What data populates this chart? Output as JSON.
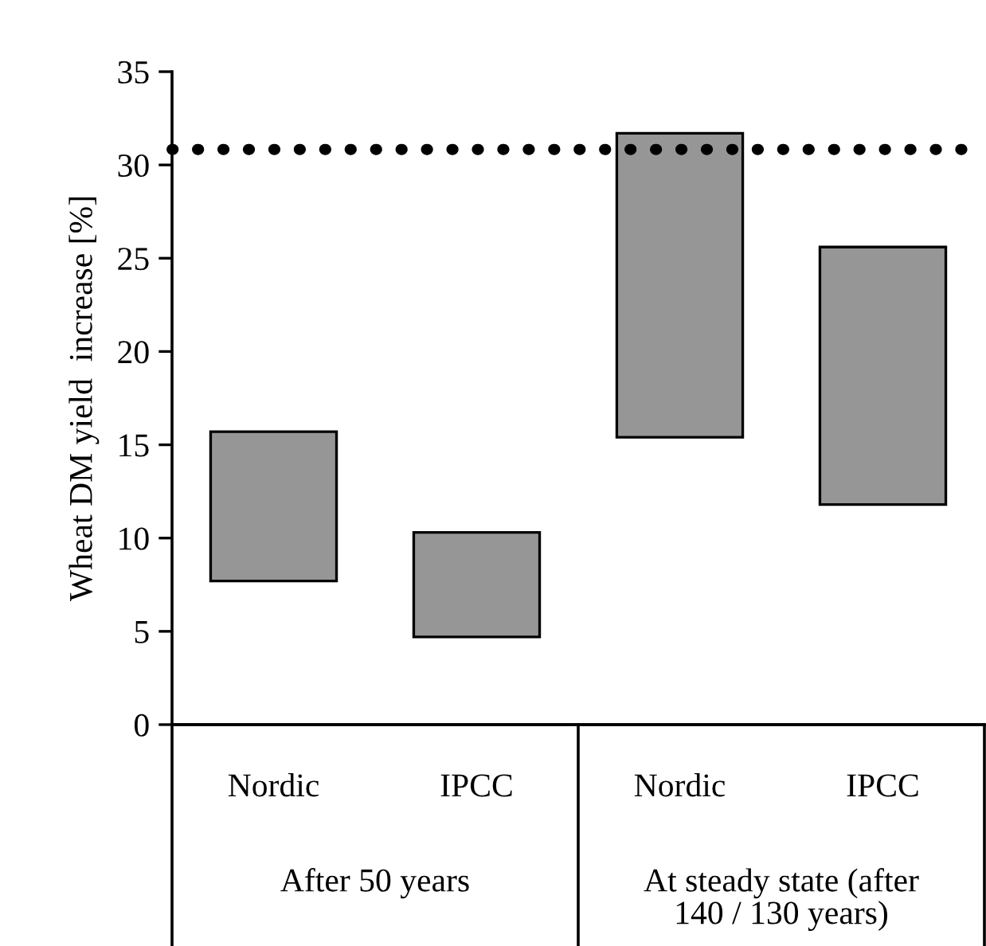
{
  "chart_data": {
    "type": "bar",
    "ylabel": "Wheat DM yield  increase [%]",
    "categories": [
      "Nordic",
      "IPCC",
      "Nordic",
      "IPCC"
    ],
    "base": [
      7.7,
      4.7,
      15.4,
      11.8
    ],
    "values": [
      8.0,
      5.6,
      16.3,
      13.8
    ],
    "color": "#969696",
    "ylim": [
      0,
      35
    ],
    "yticks": [
      0,
      5,
      10,
      15,
      20,
      25,
      30,
      35
    ],
    "ref_lines": [
      {
        "axis": "y",
        "value": 30.83,
        "label": null,
        "color": "#000000",
        "line_style": "dotted"
      }
    ],
    "annotations": [
      "After 50 years",
      "At steady state (after\n140 / 130 years)"
    ],
    "grid": false,
    "legend": false
  }
}
